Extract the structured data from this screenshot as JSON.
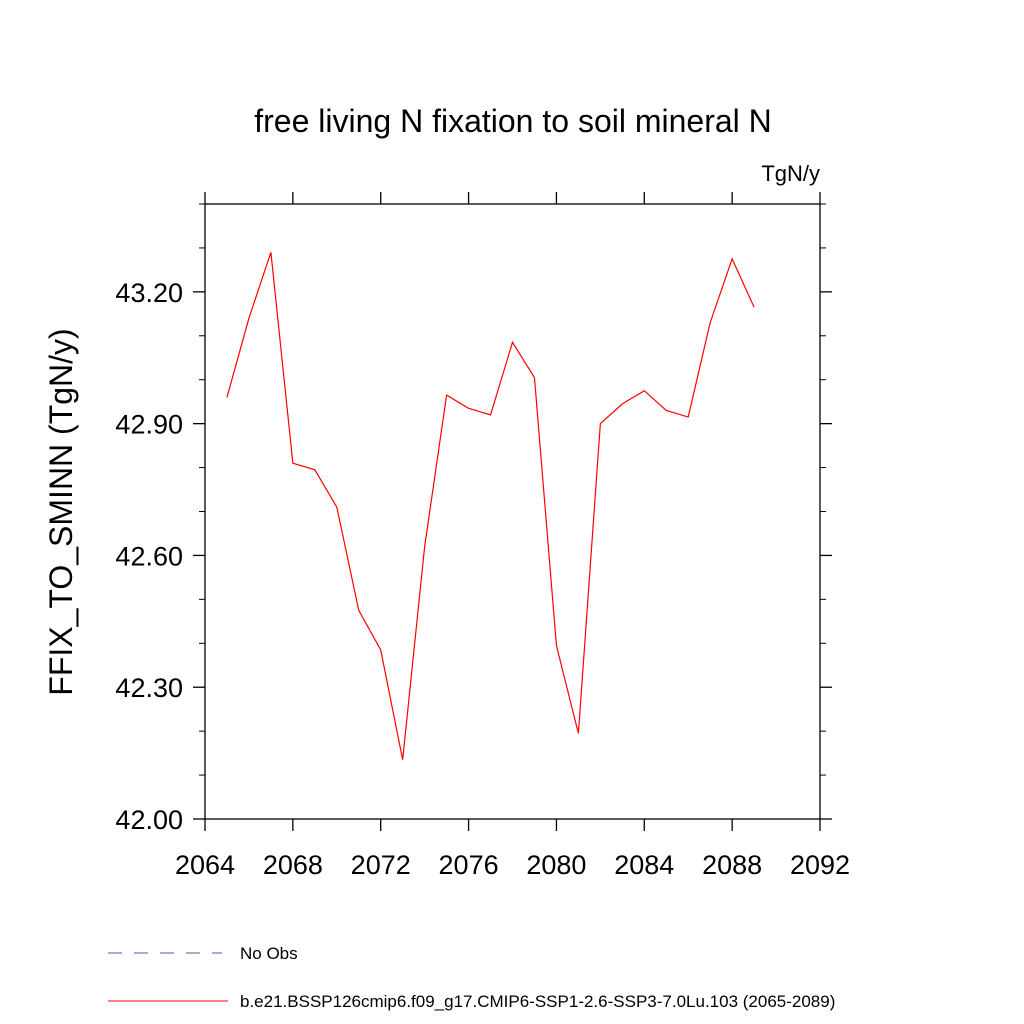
{
  "chart_data": {
    "type": "line",
    "title": "free living N fixation to soil mineral N",
    "units": "TgN/y",
    "ylabel": "FFIX_TO_SMINN  (TgN/y)",
    "xlabel": "",
    "xlim": [
      2064,
      2092
    ],
    "ylim": [
      42.0,
      43.4
    ],
    "xticks": [
      "2064",
      "2068",
      "2072",
      "2076",
      "2080",
      "2084",
      "2088",
      "2092"
    ],
    "yticks": [
      "42.00",
      "42.30",
      "42.60",
      "42.90",
      "43.20"
    ],
    "series": [
      {
        "name": "b.e21.BSSP126cmip6.f09_g17.CMIP6-SSP1-2.6-SSP3-7.0Lu.103 (2065-2089)",
        "color": "#ff0000",
        "x": [
          2065,
          2066,
          2067,
          2068,
          2069,
          2070,
          2071,
          2072,
          2073,
          2074,
          2075,
          2076,
          2077,
          2078,
          2079,
          2080,
          2081,
          2082,
          2083,
          2084,
          2085,
          2086,
          2087,
          2088,
          2089
        ],
        "values": [
          42.96,
          43.14,
          43.29,
          42.81,
          42.795,
          42.71,
          42.475,
          42.385,
          42.135,
          42.62,
          42.965,
          42.935,
          42.92,
          43.085,
          43.005,
          42.395,
          42.195,
          42.9,
          42.945,
          42.975,
          42.93,
          42.915,
          43.13,
          43.275,
          43.165
        ]
      }
    ],
    "legend": [
      {
        "label": "No Obs",
        "color": "#5555aa",
        "dash": true
      },
      {
        "label": "b.e21.BSSP126cmip6.f09_g17.CMIP6-SSP1-2.6-SSP3-7.0Lu.103 (2065-2089)",
        "color": "#ff0000",
        "dash": false
      }
    ]
  }
}
